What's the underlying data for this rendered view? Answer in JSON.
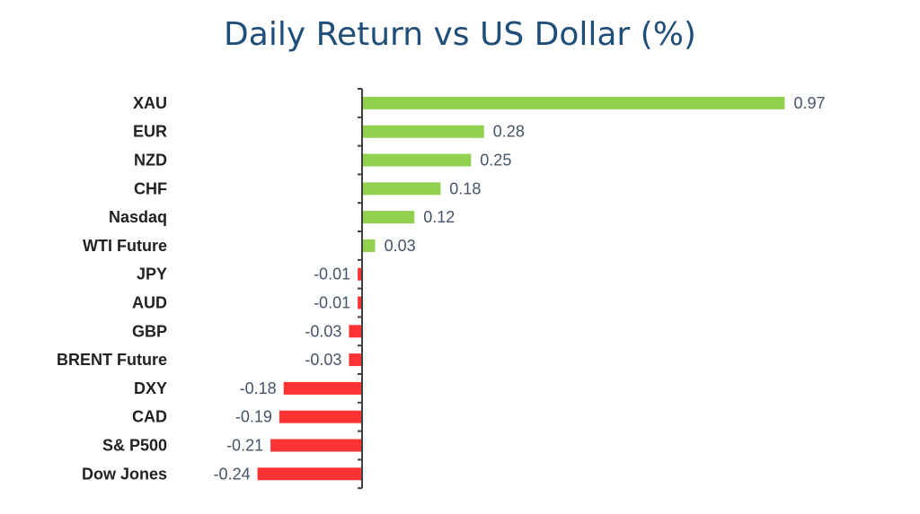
{
  "chart_data": {
    "type": "bar",
    "orientation": "horizontal",
    "title": "Daily Return vs US Dollar (%)",
    "xlabel": "",
    "ylabel": "",
    "categories": [
      "XAU",
      "EUR",
      "NZD",
      "CHF",
      "Nasdaq",
      "WTI Future",
      "JPY",
      "AUD",
      "GBP",
      "BRENT Future",
      "DXY",
      "CAD",
      "S& P500",
      "Dow Jones"
    ],
    "values": [
      0.97,
      0.28,
      0.25,
      0.18,
      0.12,
      0.03,
      -0.01,
      -0.01,
      -0.03,
      -0.03,
      -0.18,
      -0.19,
      -0.21,
      -0.24
    ],
    "value_labels": [
      "0.97",
      "0.28",
      "0.25",
      "0.18",
      "0.12",
      "0.03",
      "-0.01",
      "-0.01",
      "-0.03",
      "-0.03",
      "-0.18",
      "-0.19",
      "-0.21",
      "-0.24"
    ],
    "colors": {
      "positive": "#92d050",
      "negative": "#ff3333",
      "axis": "#404040"
    },
    "grid": false,
    "legend": "none"
  }
}
